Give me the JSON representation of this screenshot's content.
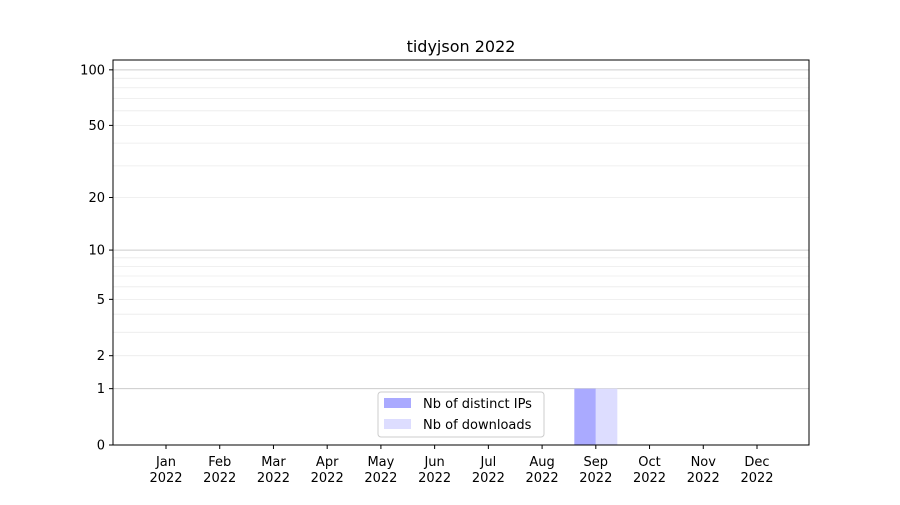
{
  "chart_data": {
    "type": "bar",
    "title": "tidyjson 2022",
    "xlabel": "",
    "ylabel": "",
    "y_scale": "symlog (log of 1+y)",
    "ylim": [
      0,
      113
    ],
    "y_ticks": [
      0,
      1,
      2,
      5,
      10,
      20,
      50,
      100
    ],
    "categories": [
      "Jan\n2022",
      "Feb\n2022",
      "Mar\n2022",
      "Apr\n2022",
      "May\n2022",
      "Jun\n2022",
      "Jul\n2022",
      "Aug\n2022",
      "Sep\n2022",
      "Oct\n2022",
      "Nov\n2022",
      "Dec\n2022"
    ],
    "series": [
      {
        "name": "Nb of distinct IPs",
        "color": "#aaaaff",
        "values": [
          0,
          0,
          0,
          0,
          0,
          0,
          0,
          0,
          1,
          0,
          0,
          0
        ]
      },
      {
        "name": "Nb of downloads",
        "color": "#ddddff",
        "values": [
          0,
          0,
          0,
          0,
          0,
          0,
          0,
          0,
          1,
          0,
          0,
          0
        ]
      }
    ],
    "grid": true,
    "legend_position": "lower center"
  }
}
